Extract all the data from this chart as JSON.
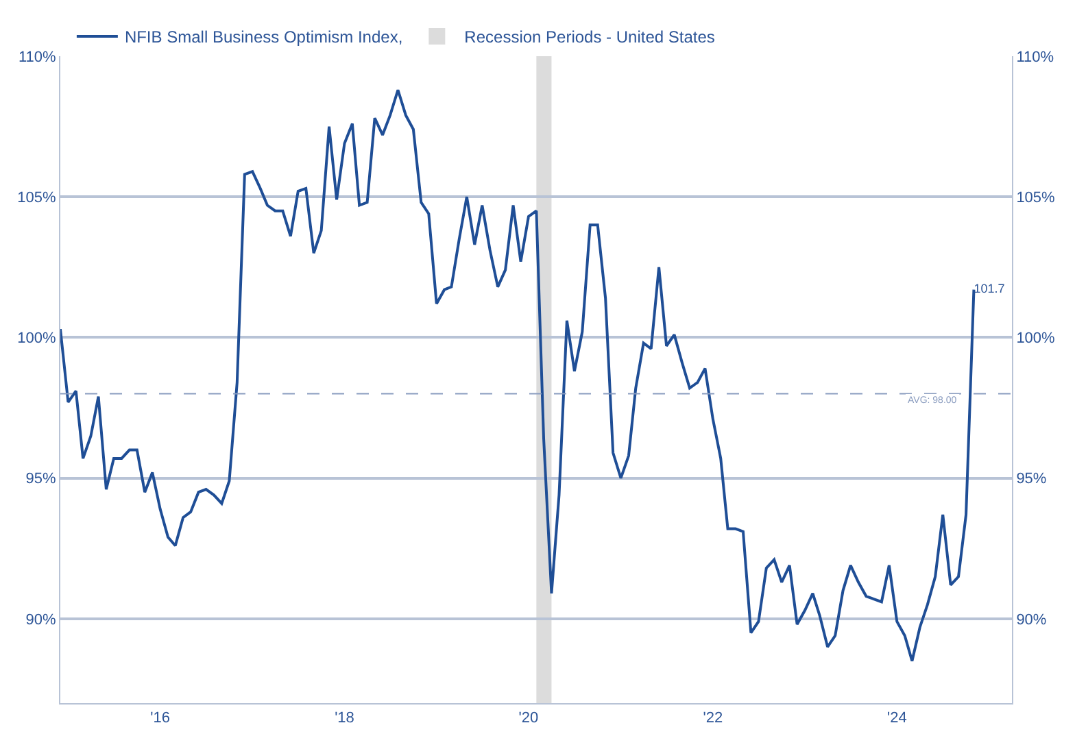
{
  "chart_data": {
    "type": "line",
    "x": [
      "2014-12",
      "2015-01",
      "2015-02",
      "2015-03",
      "2015-04",
      "2015-05",
      "2015-06",
      "2015-07",
      "2015-08",
      "2015-09",
      "2015-10",
      "2015-11",
      "2015-12",
      "2016-01",
      "2016-02",
      "2016-03",
      "2016-04",
      "2016-05",
      "2016-06",
      "2016-07",
      "2016-08",
      "2016-09",
      "2016-10",
      "2016-11",
      "2016-12",
      "2017-01",
      "2017-02",
      "2017-03",
      "2017-04",
      "2017-05",
      "2017-06",
      "2017-07",
      "2017-08",
      "2017-09",
      "2017-10",
      "2017-11",
      "2017-12",
      "2018-01",
      "2018-02",
      "2018-03",
      "2018-04",
      "2018-05",
      "2018-06",
      "2018-07",
      "2018-08",
      "2018-09",
      "2018-10",
      "2018-11",
      "2018-12",
      "2019-01",
      "2019-02",
      "2019-03",
      "2019-04",
      "2019-05",
      "2019-06",
      "2019-07",
      "2019-08",
      "2019-09",
      "2019-10",
      "2019-11",
      "2019-12",
      "2020-01",
      "2020-02",
      "2020-03",
      "2020-04",
      "2020-05",
      "2020-06",
      "2020-07",
      "2020-08",
      "2020-09",
      "2020-10",
      "2020-11",
      "2020-12",
      "2021-01",
      "2021-02",
      "2021-03",
      "2021-04",
      "2021-05",
      "2021-06",
      "2021-07",
      "2021-08",
      "2021-09",
      "2021-10",
      "2021-11",
      "2021-12",
      "2022-01",
      "2022-02",
      "2022-03",
      "2022-04",
      "2022-05",
      "2022-06",
      "2022-07",
      "2022-08",
      "2022-09",
      "2022-10",
      "2022-11",
      "2022-12",
      "2023-01",
      "2023-02",
      "2023-03",
      "2023-04",
      "2023-05",
      "2023-06",
      "2023-07",
      "2023-08",
      "2023-09",
      "2023-10",
      "2023-11",
      "2023-12",
      "2024-01",
      "2024-02",
      "2024-03",
      "2024-04",
      "2024-05",
      "2024-06",
      "2024-07",
      "2024-08",
      "2024-09",
      "2024-10",
      "2024-11"
    ],
    "series": [
      {
        "name": "NFIB Small Business Optimism Index,",
        "color": "#1f4e96",
        "values": [
          100.3,
          97.7,
          98.1,
          95.7,
          96.5,
          97.9,
          94.6,
          95.7,
          95.7,
          96.0,
          96.0,
          94.5,
          95.2,
          93.9,
          92.9,
          92.6,
          93.6,
          93.8,
          94.5,
          94.6,
          94.4,
          94.1,
          94.9,
          98.4,
          105.8,
          105.9,
          105.3,
          104.7,
          104.5,
          104.5,
          103.6,
          105.2,
          105.3,
          103.0,
          103.8,
          107.5,
          104.9,
          106.9,
          107.6,
          104.7,
          104.8,
          107.8,
          107.2,
          107.9,
          108.8,
          107.9,
          107.4,
          104.8,
          104.4,
          101.2,
          101.7,
          101.8,
          103.5,
          105.0,
          103.3,
          104.7,
          103.1,
          101.8,
          102.4,
          104.7,
          102.7,
          104.3,
          104.5,
          96.4,
          90.9,
          94.4,
          100.6,
          98.8,
          100.2,
          104.0,
          104.0,
          101.4,
          95.9,
          95.0,
          95.8,
          98.2,
          99.8,
          99.6,
          102.5,
          99.7,
          100.1,
          99.1,
          98.2,
          98.4,
          98.9,
          97.1,
          95.7,
          93.2,
          93.2,
          93.1,
          89.5,
          89.9,
          91.8,
          92.1,
          91.3,
          91.9,
          89.8,
          90.3,
          90.9,
          90.1,
          89.0,
          89.4,
          91.0,
          91.9,
          91.3,
          90.8,
          90.7,
          90.6,
          91.9,
          89.9,
          89.4,
          88.5,
          89.7,
          90.5,
          91.5,
          93.7,
          91.2,
          91.5,
          93.7,
          101.7
        ],
        "value_labels": [
          null,
          null,
          null,
          null,
          null,
          null,
          null,
          null,
          null,
          null,
          null,
          null,
          null,
          null,
          null,
          null,
          null,
          null,
          null,
          null,
          null,
          null,
          null,
          null,
          null,
          null,
          null,
          null,
          null,
          null,
          null,
          null,
          null,
          null,
          null,
          null,
          null,
          null,
          null,
          null,
          null,
          null,
          null,
          null,
          null,
          null,
          null,
          null,
          null,
          null,
          null,
          null,
          null,
          null,
          null,
          null,
          null,
          null,
          null,
          null,
          null,
          null,
          null,
          null,
          null,
          null,
          null,
          null,
          null,
          null,
          null,
          null,
          null,
          null,
          null,
          null,
          null,
          null,
          null,
          null,
          null,
          null,
          null,
          null,
          null,
          null,
          null,
          null,
          null,
          null,
          null,
          null,
          null,
          null,
          null,
          null,
          null,
          null,
          null,
          null,
          null,
          null,
          null,
          null,
          null,
          null,
          null,
          null,
          null,
          null,
          null,
          null,
          null,
          null,
          null,
          null,
          null,
          null,
          null,
          "101.7"
        ]
      }
    ],
    "xlim": [
      "2014-12",
      "2025-04"
    ],
    "xticks": [
      {
        "value": "2016-01-01",
        "label": "'16"
      },
      {
        "value": "2018-01-01",
        "label": "'18"
      },
      {
        "value": "2020-01-01",
        "label": "'20"
      },
      {
        "value": "2022-01-01",
        "label": "'22"
      },
      {
        "value": "2024-01-01",
        "label": "'24"
      }
    ],
    "ylim": [
      87,
      110
    ],
    "yticks": [
      {
        "value": 90,
        "label": "90%"
      },
      {
        "value": 95,
        "label": "95%"
      },
      {
        "value": 100,
        "label": "100%"
      },
      {
        "value": 105,
        "label": "105%"
      },
      {
        "value": 110,
        "label": "110%"
      }
    ],
    "y2lim": [
      87,
      110
    ],
    "y2ticks": [
      {
        "value": 90,
        "label": "90%"
      },
      {
        "value": 95,
        "label": "95%"
      },
      {
        "value": 100,
        "label": "100%"
      },
      {
        "value": 105,
        "label": "105%"
      },
      {
        "value": 110,
        "label": "110%"
      }
    ],
    "ref_lines": [
      {
        "axis": "y",
        "value": 98.0,
        "label": "AVG: 98.00",
        "color": "#8a9cbf",
        "line_style": "dashed"
      }
    ],
    "bands": [
      {
        "axis": "x",
        "from": "2020-02",
        "to": "2020-04",
        "label": "Recession Periods - United States",
        "color": "#dcdcdc"
      }
    ],
    "grid": "y",
    "legend": "top left",
    "line_style": "solid",
    "marker": "none"
  }
}
